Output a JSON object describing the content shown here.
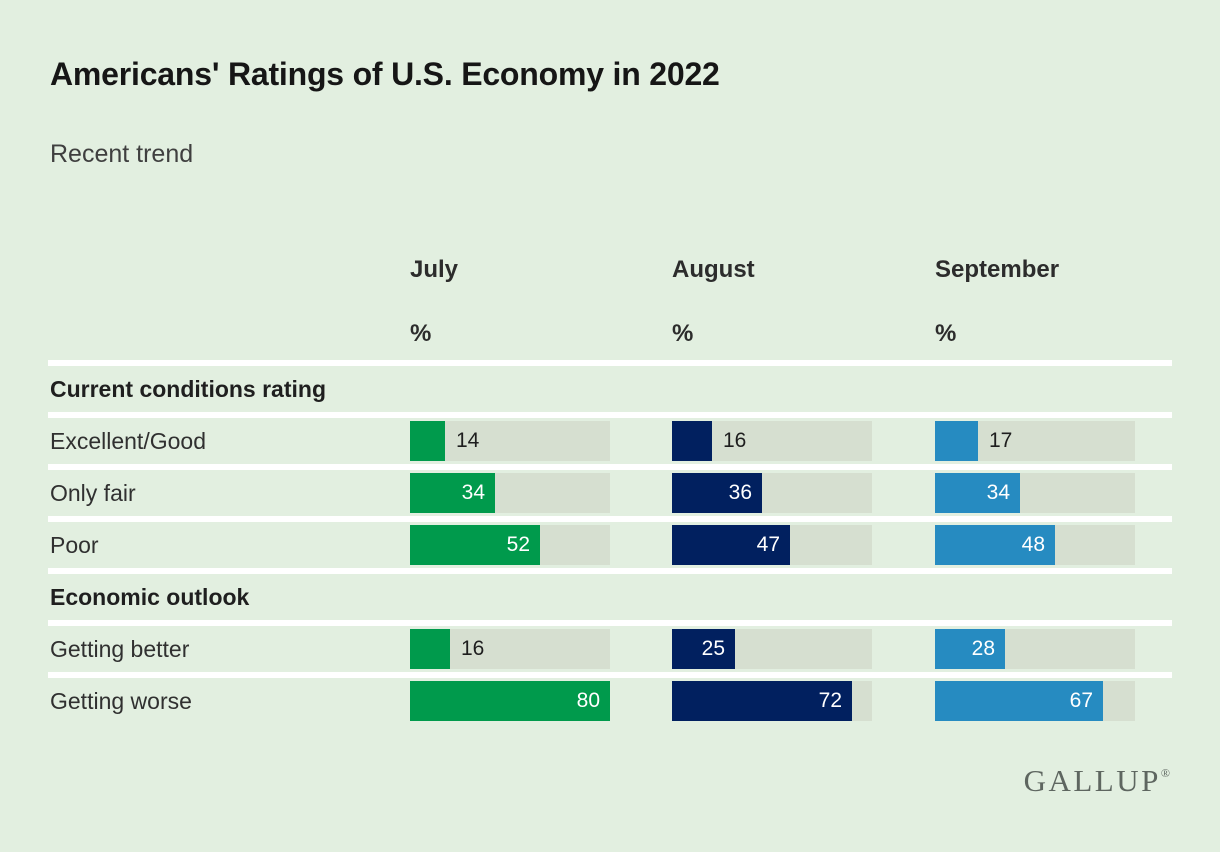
{
  "header": {
    "title": "Americans' Ratings of U.S. Economy in 2022",
    "subtitle": "Recent trend"
  },
  "branding": {
    "logo_text": "GALLUP",
    "registered_mark": "®"
  },
  "colors": {
    "background": "#e2efe0",
    "bar_track": "#d6dfd0",
    "separator": "#ffffff",
    "value_inside_text": "#ffffff",
    "value_outside_text": "#1e1e1e"
  },
  "chart_data": {
    "type": "bar",
    "orientation": "horizontal",
    "title": "Americans' Ratings of U.S. Economy in 2022",
    "subtitle": "Recent trend",
    "unit": "%",
    "max": 80,
    "grid": false,
    "legend_position": "columns-as-headers",
    "columns": [
      "July",
      "August",
      "September"
    ],
    "column_colors": [
      "#009a4c",
      "#01205f",
      "#268bc1"
    ],
    "sections": [
      {
        "header": "Current conditions rating",
        "rows": [
          {
            "label": "Excellent/Good",
            "values": [
              14,
              16,
              17
            ]
          },
          {
            "label": "Only fair",
            "values": [
              34,
              36,
              34
            ]
          },
          {
            "label": "Poor",
            "values": [
              52,
              47,
              48
            ]
          }
        ]
      },
      {
        "header": "Economic outlook",
        "rows": [
          {
            "label": "Getting better",
            "values": [
              16,
              25,
              28
            ]
          },
          {
            "label": "Getting worse",
            "values": [
              80,
              72,
              67
            ]
          }
        ]
      }
    ]
  }
}
